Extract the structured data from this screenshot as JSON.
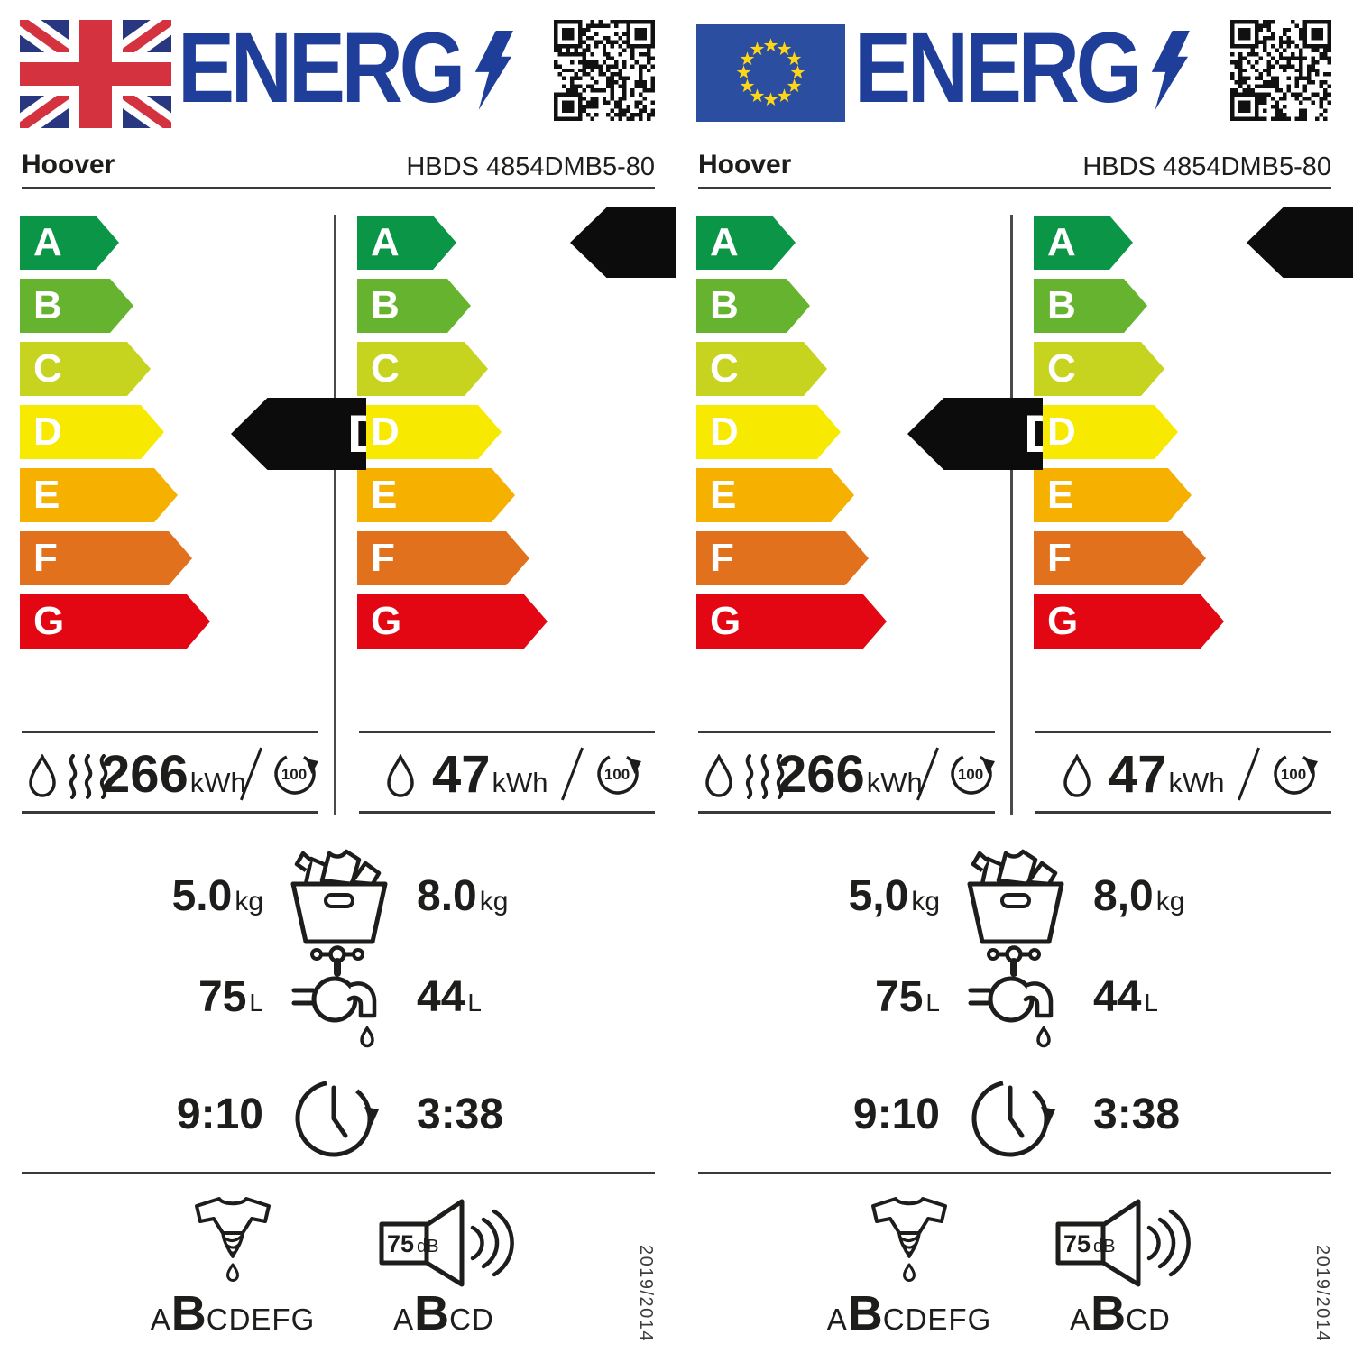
{
  "header": {
    "brand": "Hoover",
    "model": "HBDS 4854DMB5-80",
    "logo_text": "ENERG"
  },
  "scale": {
    "grades": [
      {
        "letter": "A",
        "color": "#0A9547"
      },
      {
        "letter": "B",
        "color": "#65B32E"
      },
      {
        "letter": "C",
        "color": "#C6D31F"
      },
      {
        "letter": "D",
        "color": "#F8E900"
      },
      {
        "letter": "E",
        "color": "#F5B000"
      },
      {
        "letter": "F",
        "color": "#E2711D"
      },
      {
        "letter": "G",
        "color": "#E30613"
      }
    ]
  },
  "wash_dry": {
    "rating": "D",
    "energy": "266",
    "energy_unit": "kWh",
    "cycles": "100",
    "water": "75",
    "water_unit": "L",
    "duration": "9:10"
  },
  "wash": {
    "rating": "A",
    "energy": "47",
    "energy_unit": "kWh",
    "cycles": "100",
    "water": "44",
    "water_unit": "L",
    "duration": "3:38"
  },
  "capacity_unit": "kg",
  "labels": [
    {
      "region": "uk",
      "capacity_dry_kg": "5.0",
      "capacity_wash_kg": "8.0"
    },
    {
      "region": "eu",
      "capacity_dry_kg": "5,0",
      "capacity_wash_kg": "8,0"
    }
  ],
  "spin_drying_class": {
    "pre": "A",
    "rated": "B",
    "post": "CDEFG"
  },
  "noise": {
    "value": "75",
    "unit": "dB",
    "pre": "A",
    "rated": "B",
    "post": "CD"
  },
  "regulation": "2019/2014",
  "colors": {
    "logo_blue": "#1E3E99",
    "indicator_black": "#0C0C0C",
    "uk_blue": "#283780",
    "uk_red": "#D4323E",
    "eu_blue": "#2B4EA0",
    "eu_star_yellow": "#FFD617"
  }
}
